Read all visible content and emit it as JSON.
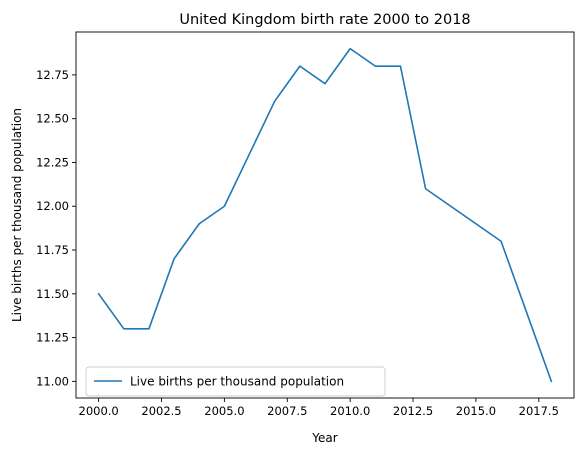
{
  "chart_data": {
    "type": "line",
    "title": "United Kingdom birth rate 2000 to 2018",
    "xlabel": "Year",
    "ylabel": "Live births per thousand population",
    "xlim": [
      1999.1,
      2018.9
    ],
    "ylim": [
      10.905,
      12.995
    ],
    "x_ticks": [
      2000.0,
      2002.5,
      2005.0,
      2007.5,
      2010.0,
      2012.5,
      2015.0,
      2017.5
    ],
    "x_tick_labels": [
      "2000.0",
      "2002.5",
      "2005.0",
      "2007.5",
      "2010.0",
      "2012.5",
      "2015.0",
      "2017.5"
    ],
    "y_ticks": [
      11.0,
      11.25,
      11.5,
      11.75,
      12.0,
      12.25,
      12.5,
      12.75
    ],
    "y_tick_labels": [
      "11.00",
      "11.25",
      "11.50",
      "11.75",
      "12.00",
      "12.25",
      "12.50",
      "12.75"
    ],
    "grid": false,
    "legend_position": "lower-left",
    "series": [
      {
        "name": "Live births per thousand population",
        "color": "#1f77b4",
        "x": [
          2000,
          2001,
          2002,
          2003,
          2004,
          2005,
          2006,
          2007,
          2008,
          2009,
          2010,
          2011,
          2012,
          2013,
          2014,
          2015,
          2016,
          2017,
          2018
        ],
        "y": [
          11.5,
          11.3,
          11.3,
          11.7,
          11.9,
          12.0,
          12.3,
          12.6,
          12.8,
          12.7,
          12.9,
          12.8,
          12.8,
          12.1,
          12.0,
          11.9,
          11.8,
          11.4,
          11.0
        ]
      }
    ]
  }
}
